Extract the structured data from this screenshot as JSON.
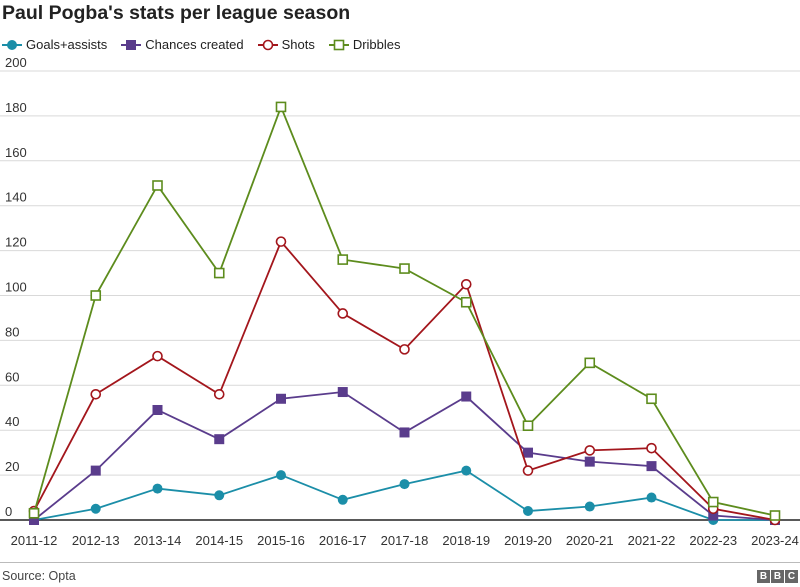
{
  "chart_data": {
    "type": "line",
    "title": "Paul Pogba's stats per league season",
    "xlabel": "",
    "ylabel": "",
    "categories": [
      "2011-12",
      "2012-13",
      "2013-14",
      "2014-15",
      "2015-16",
      "2016-17",
      "2017-18",
      "2018-19",
      "2019-20",
      "2020-21",
      "2021-22",
      "2022-23",
      "2023-24"
    ],
    "ylim": [
      0,
      200
    ],
    "yticks": [
      0,
      20,
      40,
      60,
      80,
      100,
      120,
      140,
      160,
      180,
      200
    ],
    "grid": true,
    "legend_position": "top-left",
    "series": [
      {
        "name": "Goals+assists",
        "color": "#1b8ea8",
        "marker": "filled-circle",
        "values": [
          0,
          5,
          14,
          11,
          20,
          9,
          16,
          22,
          4,
          6,
          10,
          0,
          0
        ]
      },
      {
        "name": "Chances created",
        "color": "#5a3c8c",
        "marker": "filled-square",
        "values": [
          0,
          22,
          49,
          36,
          54,
          57,
          39,
          55,
          30,
          26,
          24,
          2,
          0
        ]
      },
      {
        "name": "Shots",
        "color": "#a3161c",
        "marker": "open-circle",
        "values": [
          4,
          56,
          73,
          56,
          124,
          92,
          76,
          105,
          22,
          31,
          32,
          5,
          0
        ]
      },
      {
        "name": "Dribbles",
        "color": "#5d8c1d",
        "marker": "open-square",
        "values": [
          3,
          100,
          149,
          110,
          184,
          116,
          112,
          97,
          42,
          70,
          54,
          8,
          2
        ]
      }
    ]
  },
  "source": "Source: Opta",
  "logo": "BBC"
}
